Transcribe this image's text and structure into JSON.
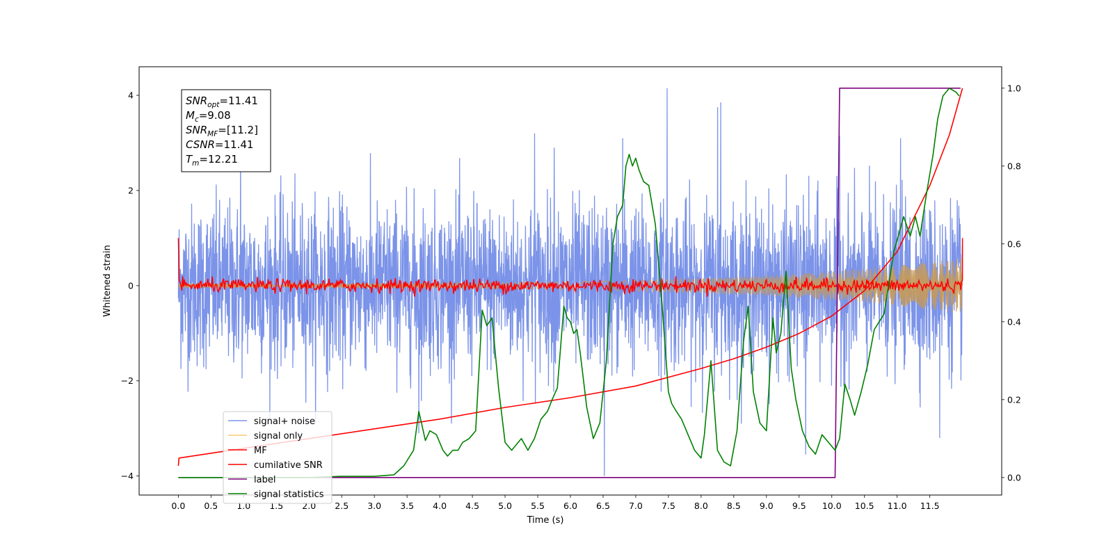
{
  "chart_data": {
    "type": "line",
    "xlabel": "Time (s)",
    "ylabel": "Whitened strain",
    "xlim": [
      -0.6,
      12.6
    ],
    "ylim": [
      -4.4,
      4.6
    ],
    "y2lim": [
      -0.045,
      1.055
    ],
    "x_ticks": [
      0.0,
      0.5,
      1.0,
      1.5,
      2.0,
      2.5,
      3.0,
      3.5,
      4.0,
      4.5,
      5.0,
      5.5,
      6.0,
      6.5,
      7.0,
      7.5,
      8.0,
      8.5,
      9.0,
      9.5,
      10.0,
      10.5,
      11.0,
      11.5
    ],
    "x_tick_labels": [
      "0.0",
      "0.5",
      "1.0",
      "1.5",
      "2.0",
      "2.5",
      "3.0",
      "3.5",
      "4.0",
      "4.5",
      "5.0",
      "5.5",
      "6.0",
      "6.5",
      "7.0",
      "7.5",
      "8.0",
      "8.5",
      "9.0",
      "9.5",
      "10.0",
      "10.5",
      "11.0",
      "11.5"
    ],
    "y_ticks": [
      -4,
      -2,
      0,
      2,
      4
    ],
    "y_tick_labels": [
      "−4",
      "−2",
      "0",
      "2",
      "4"
    ],
    "y2_ticks": [
      0.0,
      0.2,
      0.4,
      0.6,
      0.8,
      1.0
    ],
    "y2_tick_labels": [
      "0.0",
      "0.2",
      "0.4",
      "0.6",
      "0.8",
      "1.0"
    ],
    "grid": false,
    "legend_position": "lower-left",
    "annotation": [
      {
        "base": "SNR",
        "sub": "opt",
        "value": "=11.41"
      },
      {
        "base": "M",
        "sub": "c",
        "value": "=9.08"
      },
      {
        "base": "SNR",
        "sub": "MF",
        "value": "=[11.2]"
      },
      {
        "base": "CSNR",
        "sub": "",
        "value": "=11.41"
      },
      {
        "base": "T",
        "sub": "m",
        "value": "=12.21"
      }
    ],
    "series": [
      {
        "name": "signal+ noise",
        "axis": "left",
        "color": "#7b93e8",
        "kind": "noise",
        "t_start": 0.0,
        "t_end": 12.0,
        "sigma": 0.85,
        "spikes": [
          [
            0.95,
            2.9
          ],
          [
            3.68,
            -3.1
          ],
          [
            5.45,
            3.2
          ],
          [
            5.75,
            2.9
          ],
          [
            6.52,
            3.85
          ],
          [
            6.52,
            -4.0
          ],
          [
            6.8,
            3.1
          ],
          [
            7.48,
            4.15
          ],
          [
            8.25,
            3.75
          ],
          [
            8.3,
            -3.0
          ],
          [
            8.3,
            3.85
          ],
          [
            9.6,
            -3.55
          ],
          [
            10.12,
            3.15
          ],
          [
            11.65,
            -3.2
          ],
          [
            11.05,
            3.1
          ]
        ]
      },
      {
        "name": "signal only",
        "axis": "left",
        "color": "#c79a58",
        "kind": "envelope",
        "t_start": 0.0,
        "t_end": 12.0,
        "amp_start": 0.05,
        "amp_end": 0.58
      },
      {
        "name": "MF",
        "axis": "left",
        "color": "#ff0000",
        "kind": "mf",
        "t_start": 0.0,
        "t_end": 12.0,
        "initial": 1.0,
        "final": 1.0
      },
      {
        "name": "cumilative SNR",
        "axis": "right",
        "color": "#ff0000",
        "x": [
          0.0,
          0.01,
          1.0,
          2.0,
          3.0,
          4.0,
          5.0,
          6.0,
          7.0,
          8.0,
          8.5,
          9.0,
          9.5,
          10.0,
          10.5,
          11.0,
          11.5,
          11.8,
          12.0
        ],
        "values": [
          0.03,
          0.05,
          0.075,
          0.1,
          0.125,
          0.15,
          0.18,
          0.205,
          0.235,
          0.28,
          0.305,
          0.335,
          0.37,
          0.415,
          0.48,
          0.58,
          0.75,
          0.88,
          1.0
        ]
      },
      {
        "name": "label",
        "axis": "right",
        "color": "#7f007f",
        "x": [
          0.0,
          10.05,
          10.12,
          11.97
        ],
        "values": [
          0.0,
          0.0,
          1.0,
          1.0
        ]
      },
      {
        "name": "signal statistics",
        "axis": "right",
        "color": "#008000",
        "x": [
          0.0,
          0.4,
          1.0,
          2.0,
          2.5,
          3.0,
          3.3,
          3.45,
          3.6,
          3.68,
          3.78,
          3.85,
          3.95,
          4.05,
          4.12,
          4.2,
          4.28,
          4.35,
          4.45,
          4.55,
          4.65,
          4.72,
          4.8,
          4.9,
          5.0,
          5.1,
          5.15,
          5.25,
          5.35,
          5.45,
          5.55,
          5.65,
          5.72,
          5.8,
          5.9,
          5.95,
          6.0,
          6.05,
          6.1,
          6.15,
          6.25,
          6.35,
          6.45,
          6.55,
          6.65,
          6.72,
          6.8,
          6.85,
          6.9,
          6.95,
          7.0,
          7.05,
          7.12,
          7.2,
          7.3,
          7.4,
          7.5,
          7.55,
          7.62,
          7.7,
          7.8,
          7.9,
          8.0,
          8.05,
          8.15,
          8.25,
          8.35,
          8.45,
          8.55,
          8.65,
          8.72,
          8.8,
          8.9,
          9.0,
          9.1,
          9.15,
          9.22,
          9.3,
          9.38,
          9.45,
          9.55,
          9.65,
          9.75,
          9.85,
          9.95,
          10.05,
          10.12,
          10.2,
          10.28,
          10.35,
          10.45,
          10.55,
          10.65,
          10.8,
          10.95,
          11.1,
          11.2,
          11.28,
          11.35,
          11.45,
          11.55,
          11.62,
          11.7,
          11.8,
          11.9,
          11.95
        ],
        "values": [
          0.0,
          0.0,
          0.0,
          0.0,
          0.003,
          0.003,
          0.007,
          0.03,
          0.07,
          0.17,
          0.095,
          0.12,
          0.11,
          0.07,
          0.055,
          0.07,
          0.07,
          0.09,
          0.1,
          0.12,
          0.43,
          0.39,
          0.41,
          0.23,
          0.09,
          0.07,
          0.08,
          0.1,
          0.07,
          0.1,
          0.15,
          0.17,
          0.2,
          0.23,
          0.44,
          0.41,
          0.4,
          0.37,
          0.38,
          0.32,
          0.18,
          0.1,
          0.14,
          0.3,
          0.6,
          0.67,
          0.7,
          0.8,
          0.83,
          0.8,
          0.82,
          0.79,
          0.76,
          0.75,
          0.65,
          0.45,
          0.22,
          0.19,
          0.17,
          0.15,
          0.11,
          0.07,
          0.05,
          0.11,
          0.3,
          0.07,
          0.04,
          0.03,
          0.12,
          0.35,
          0.44,
          0.22,
          0.14,
          0.12,
          0.41,
          0.32,
          0.37,
          0.53,
          0.28,
          0.2,
          0.12,
          0.08,
          0.06,
          0.11,
          0.09,
          0.07,
          0.1,
          0.24,
          0.2,
          0.16,
          0.22,
          0.29,
          0.38,
          0.42,
          0.58,
          0.67,
          0.62,
          0.67,
          0.62,
          0.73,
          0.83,
          0.92,
          0.98,
          1.0,
          0.99,
          0.98
        ]
      }
    ]
  }
}
